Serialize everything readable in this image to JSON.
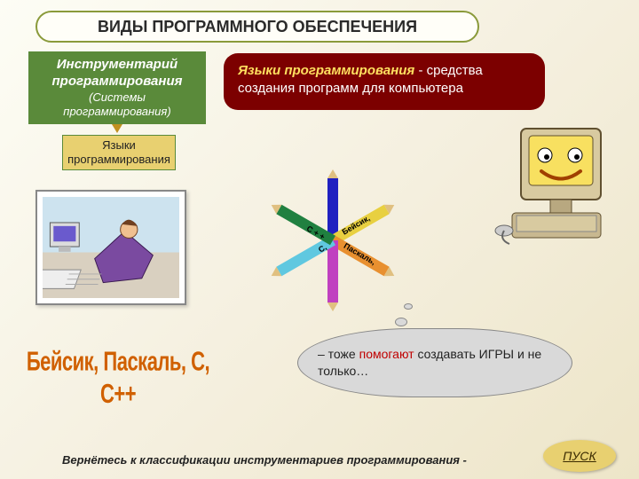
{
  "title": "ВИДЫ ПРОГРАММНОГО ОБЕСПЕЧЕНИЯ",
  "green_box": {
    "line1": "Инструментарий",
    "line2": "программирования",
    "sub": "(Системы программирования)"
  },
  "yellow_box": "Языки программирования",
  "desc": {
    "title_part": "Языки программирования",
    "rest": " - средства создания программ для компьютера"
  },
  "languages_label": "Бейсик, Паскаль, С, С++",
  "pencils": [
    {
      "angle": -90,
      "color": "#2020c0",
      "label": ""
    },
    {
      "angle": -30,
      "color": "#e8d040",
      "label": "Бейсик,"
    },
    {
      "angle": 30,
      "color": "#e89030",
      "label": "Паскаль,"
    },
    {
      "angle": 90,
      "color": "#c040c0",
      "label": ""
    },
    {
      "angle": 150,
      "color": "#60c8e0",
      "label": "С,"
    },
    {
      "angle": 210,
      "color": "#208040",
      "label": "С + +"
    }
  ],
  "cloud": {
    "pre": "– тоже ",
    "help": "помогают",
    "post": " создавать ИГРЫ и не только…"
  },
  "footer": "Вернётесь к классификации инструментариев  программирования -",
  "pusk": "ПУСК",
  "colors": {
    "green_box_bg": "#5a8a3a",
    "yellow_box_bg": "#e8d070",
    "desc_bg": "#7c0000",
    "desc_title": "#ffe060",
    "lang_label": "#d06000",
    "cloud_bg": "#d9d9d9",
    "help": "#c00000"
  }
}
